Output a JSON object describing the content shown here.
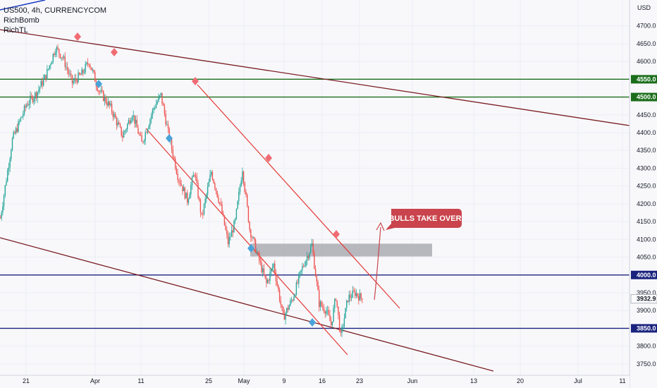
{
  "header": {
    "symbol_line": "US500, 4h, CURRENCYCOM",
    "indicators": [
      "RichBomb",
      "RichTL"
    ]
  },
  "chart_data": {
    "type": "candlestick",
    "currency_label": "USD",
    "y_ticks": [
      3750,
      3800,
      3850,
      3900,
      3950,
      4000,
      4050,
      4100,
      4150,
      4200,
      4250,
      4300,
      4350,
      4400,
      4450,
      4500,
      4550,
      4600,
      4650,
      4700
    ],
    "y_tick_labels": [
      "3750.0",
      "3800.0",
      "3850.0",
      "3900.0",
      "3950.0",
      "4000.0",
      "4050.0",
      "4100.0",
      "4150.0",
      "4200.0",
      "4250.0",
      "4300.0",
      "4350.0",
      "4400.0",
      "4450.0",
      "4500.0",
      "4550.0",
      "4600.0",
      "4650.0",
      "4700.0"
    ],
    "ylim": [
      3718,
      4745
    ],
    "x_ticks": [
      "21",
      "Apr",
      "11",
      "25",
      "May",
      "9",
      "16",
      "23",
      "Jun",
      "13",
      "20",
      "Jul",
      "11"
    ],
    "horizontal_levels": [
      {
        "value": 4550,
        "label": "4550.0",
        "color": "#1b6e1b"
      },
      {
        "value": 4500,
        "label": "4500.0",
        "color": "#1b6e1b"
      },
      {
        "value": 4000,
        "label": "4000.0",
        "color": "#1a237e"
      },
      {
        "value": 3850,
        "label": "3850.0",
        "color": "#1a237e"
      }
    ],
    "price_label": {
      "value": 3932.9,
      "label": "3932.9"
    },
    "annotation": {
      "text": "BULLS TAKE OVER",
      "color": "#c9444c"
    },
    "zone": {
      "low": 4052,
      "high": 4088,
      "color": "#9e9ea6"
    },
    "colors": {
      "bull": "#26a69a",
      "bear": "#ef5350",
      "trend": "#7b1f24",
      "channel": "#e53935",
      "marker_high": "#f06c74",
      "marker_low": "#4aa3d9"
    },
    "swings": [
      {
        "t": 0,
        "p": 4160
      },
      {
        "t": 10,
        "p": 4380
      },
      {
        "t": 22,
        "p": 4480
      },
      {
        "t": 30,
        "p": 4510
      },
      {
        "t": 38,
        "p": 4560
      },
      {
        "t": 46,
        "p": 4638
      },
      {
        "t": 52,
        "p": 4612
      },
      {
        "t": 60,
        "p": 4540
      },
      {
        "t": 68,
        "p": 4565
      },
      {
        "t": 74,
        "p": 4600
      },
      {
        "t": 82,
        "p": 4520
      },
      {
        "t": 92,
        "p": 4470
      },
      {
        "t": 102,
        "p": 4390
      },
      {
        "t": 110,
        "p": 4455
      },
      {
        "t": 118,
        "p": 4370
      },
      {
        "t": 128,
        "p": 4470
      },
      {
        "t": 134,
        "p": 4505
      },
      {
        "t": 140,
        "p": 4400
      },
      {
        "t": 148,
        "p": 4280
      },
      {
        "t": 156,
        "p": 4210
      },
      {
        "t": 162,
        "p": 4290
      },
      {
        "t": 168,
        "p": 4160
      },
      {
        "t": 176,
        "p": 4290
      },
      {
        "t": 184,
        "p": 4190
      },
      {
        "t": 190,
        "p": 4090
      },
      {
        "t": 196,
        "p": 4150
      },
      {
        "t": 202,
        "p": 4300
      },
      {
        "t": 208,
        "p": 4130
      },
      {
        "t": 216,
        "p": 4040
      },
      {
        "t": 222,
        "p": 3975
      },
      {
        "t": 228,
        "p": 4030
      },
      {
        "t": 236,
        "p": 3880
      },
      {
        "t": 244,
        "p": 3935
      },
      {
        "t": 252,
        "p": 4020
      },
      {
        "t": 260,
        "p": 4085
      },
      {
        "t": 266,
        "p": 3920
      },
      {
        "t": 272,
        "p": 3900
      },
      {
        "t": 276,
        "p": 3860
      },
      {
        "t": 280,
        "p": 3940
      },
      {
        "t": 284,
        "p": 3825
      },
      {
        "t": 290,
        "p": 3935
      },
      {
        "t": 296,
        "p": 3950
      },
      {
        "t": 302,
        "p": 3932
      }
    ]
  }
}
